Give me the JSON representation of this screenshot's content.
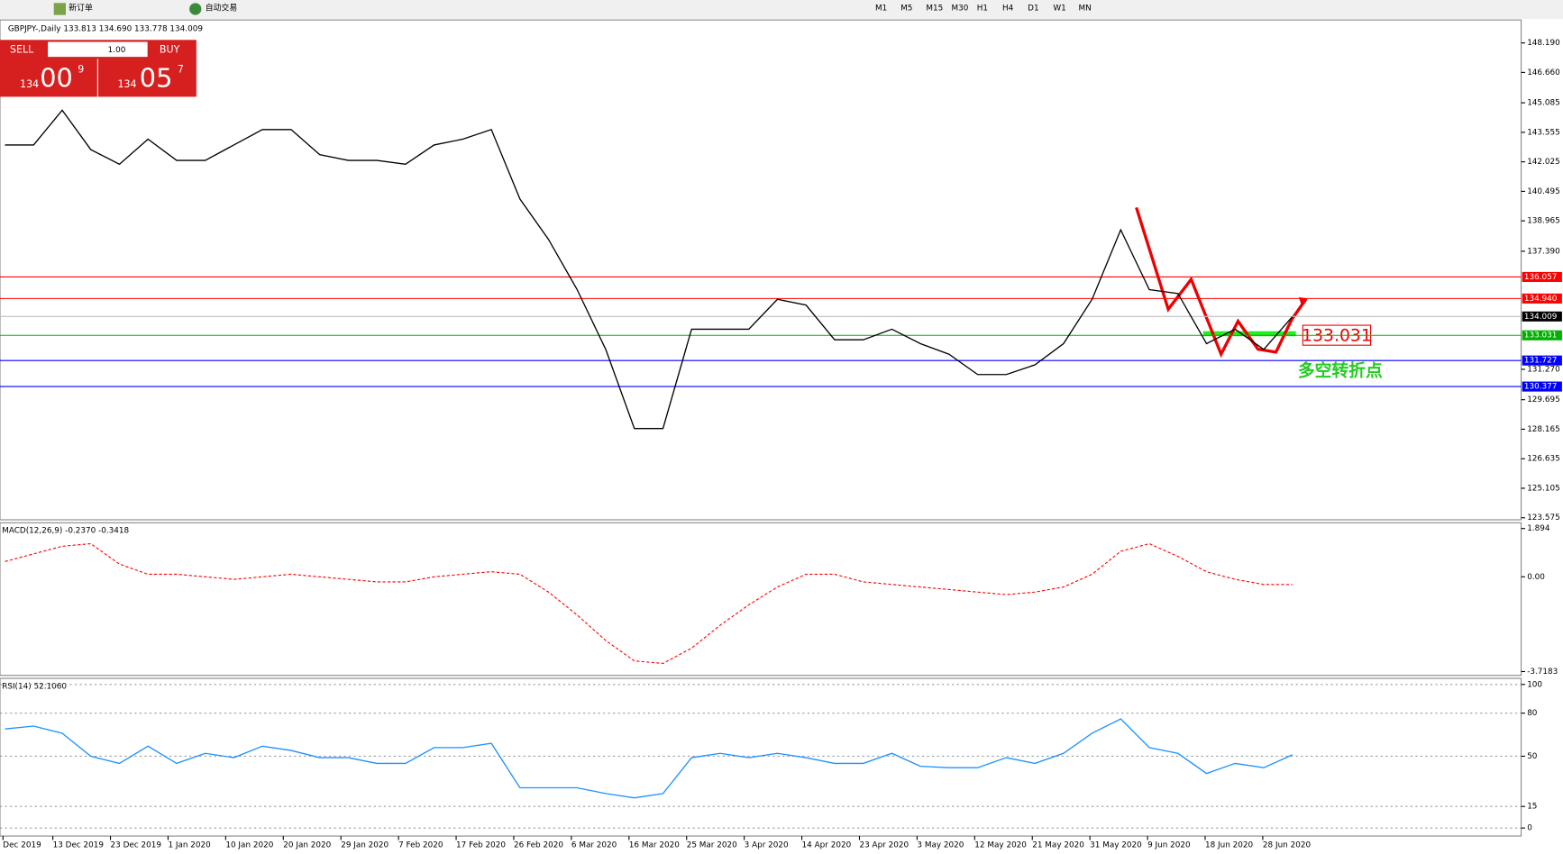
{
  "toolbar": {
    "new_order": "新订单",
    "auto_trading": "自动交易",
    "timeframes": [
      "M1",
      "M5",
      "M15",
      "M30",
      "H1",
      "H4",
      "D1",
      "W1",
      "MN"
    ]
  },
  "trade_panel": {
    "sell": "SELL",
    "lots": "1.00",
    "buy": "BUY",
    "bid": [
      "134",
      "00",
      "9"
    ],
    "ask": [
      "134",
      "05",
      "7"
    ]
  },
  "date_axis": [
    "Dec 2019",
    "13 Dec 2019",
    "23 Dec 2019",
    "1 Jan 2020",
    "10 Jan 2020",
    "20 Jan 2020",
    "29 Jan 2020",
    "7 Feb 2020",
    "17 Feb 2020",
    "26 Feb 2020",
    "6 Mar 2020",
    "16 Mar 2020",
    "25 Mar 2020",
    "3 Apr 2020",
    "14 Apr 2020",
    "23 Apr 2020",
    "3 May 2020",
    "12 May 2020",
    "21 May 2020",
    "31 May 2020",
    "9 Jun 2020",
    "18 Jun 2020",
    "28 Jun 2020"
  ],
  "chart_data": [
    {
      "type": "line",
      "title": "GBPJPY-,Daily  133.813 134.690 133.778 134.009",
      "color": "#000000",
      "ylim": [
        123.47,
        149.38
      ],
      "yticks": [
        {
          "value": 148.19,
          "label": "148.190"
        },
        {
          "value": 146.66,
          "label": "146.660"
        },
        145.085,
        143.555,
        142.025,
        140.495,
        138.965,
        {
          "value": 137.39,
          "label": "137.390"
        },
        {
          "value": 131.27,
          "label": "131.270"
        },
        129.695,
        128.165,
        126.635,
        125.105,
        123.575
      ],
      "values": [
        142.9,
        142.9,
        144.7,
        142.66,
        141.9,
        143.2,
        142.1,
        142.1,
        142.9,
        143.7,
        143.7,
        142.4,
        142.1,
        142.1,
        141.9,
        142.9,
        143.2,
        143.7,
        140.1,
        138.0,
        135.4,
        132.3,
        128.2,
        128.2,
        133.35,
        133.35,
        133.35,
        134.9,
        134.6,
        132.8,
        132.8,
        133.35,
        132.6,
        132.05,
        131.0,
        131.0,
        131.5,
        132.6,
        134.9,
        138.5,
        135.4,
        135.2,
        132.6,
        133.35,
        132.3,
        134.0
      ],
      "levels": [
        {
          "value": 136.057,
          "color": "#ff0000"
        },
        {
          "value": 134.94,
          "label": "134.940",
          "color": "#ff0000"
        },
        {
          "value": 134.009,
          "color": "#000000"
        },
        {
          "value": 133.031,
          "color": "#00b000"
        },
        {
          "value": 131.727,
          "color": "#0000ff"
        },
        {
          "value": 130.377,
          "color": "#0000ff"
        }
      ],
      "annotation": "多空转折点"
    },
    {
      "type": "line",
      "title": "MACD(12,26,9) -0.2370 -0.3418",
      "color": "#ff0000",
      "ylim": [
        -3.87,
        2.12
      ],
      "yticks": [
        1.894,
        {
          "value": 0,
          "label": "0.00"
        },
        -3.7183
      ],
      "values": [
        0.6,
        0.9,
        1.2,
        1.3,
        0.5,
        0.1,
        0.1,
        0.0,
        -0.1,
        0.0,
        0.1,
        0.0,
        -0.1,
        -0.2,
        -0.2,
        0.0,
        0.1,
        0.2,
        0.1,
        -0.6,
        -1.5,
        -2.5,
        -3.3,
        -3.4,
        -2.8,
        -1.9,
        -1.1,
        -0.4,
        0.1,
        0.1,
        -0.2,
        -0.3,
        -0.4,
        -0.5,
        -0.6,
        -0.7,
        -0.6,
        -0.4,
        0.1,
        1.0,
        1.3,
        0.8,
        0.2,
        -0.1,
        -0.3,
        -0.3
      ]
    },
    {
      "type": "line",
      "title": "RSI(14) 52.1060",
      "color": "#1e90ff",
      "ylim": [
        -5.6,
        104.2
      ],
      "yticks": [
        100,
        80,
        50,
        15,
        0
      ],
      "values": [
        69,
        71,
        66,
        50,
        45,
        57,
        45,
        52,
        49,
        57,
        54,
        49,
        49,
        45,
        45,
        56,
        56,
        59,
        28,
        28,
        28,
        24,
        21,
        24,
        49,
        52,
        49,
        52,
        49,
        45,
        45,
        52,
        43,
        42,
        42,
        49,
        45,
        52,
        66,
        76,
        56,
        52,
        38,
        45,
        42,
        51
      ]
    }
  ]
}
